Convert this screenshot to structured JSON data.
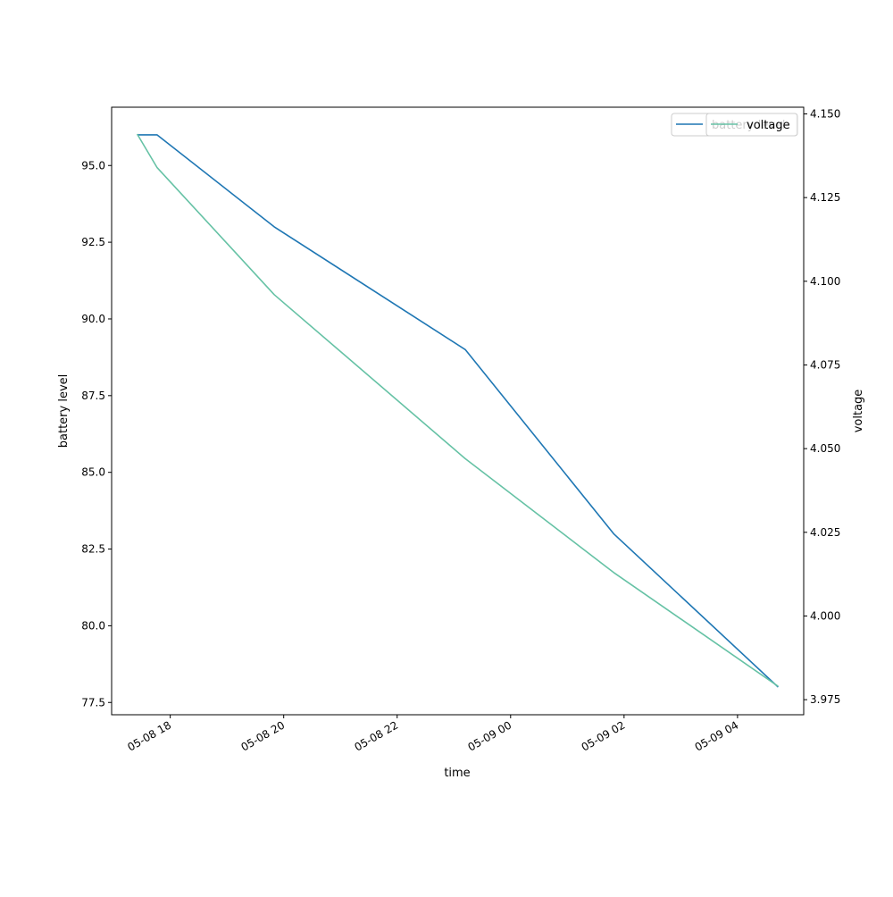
{
  "chart_data": {
    "type": "line",
    "title": "",
    "xlabel": "time",
    "ylabel_left": "battery level",
    "ylabel_right": "voltage",
    "xlim": [
      "2024-05-08T16:58",
      "2024-05-09T05:10"
    ],
    "ylim_left": [
      77.1,
      96.9
    ],
    "ylim_right": [
      3.9705,
      4.152
    ],
    "x_tick_labels": [
      "05-08 18",
      "05-08 20",
      "05-08 22",
      "05-09 00",
      "05-09 02",
      "05-09 04"
    ],
    "x_ticks": [
      "2024-05-08T18:00",
      "2024-05-08T20:00",
      "2024-05-08T22:00",
      "2024-05-09T00:00",
      "2024-05-09T02:00",
      "2024-05-09T04:00"
    ],
    "y_left_ticks": [
      77.5,
      80.0,
      82.5,
      85.0,
      87.5,
      90.0,
      92.5,
      95.0
    ],
    "y_left_tick_labels": [
      "77.5",
      "80.0",
      "82.5",
      "85.0",
      "87.5",
      "90.0",
      "92.5",
      "95.0"
    ],
    "y_right_ticks": [
      3.975,
      4.0,
      4.025,
      4.05,
      4.075,
      4.1,
      4.125,
      4.15
    ],
    "y_right_tick_labels": [
      "3.975",
      "4.000",
      "4.025",
      "4.050",
      "4.075",
      "4.100",
      "4.125",
      "4.150"
    ],
    "grid": false,
    "legend_position": "top-right",
    "series": [
      {
        "name": "battery level",
        "axis": "left",
        "color": "#1f77b4",
        "x": [
          "2024-05-08T17:25",
          "2024-05-08T17:46",
          "2024-05-08T19:50",
          "2024-05-08T23:12",
          "2024-05-09T01:49",
          "2024-05-09T04:43"
        ],
        "values": [
          96,
          96,
          93,
          89,
          83,
          78
        ]
      },
      {
        "name": "voltage",
        "axis": "right",
        "color": "#66c2a5",
        "x": [
          "2024-05-08T17:25",
          "2024-05-08T17:46",
          "2024-05-08T19:50",
          "2024-05-08T23:12",
          "2024-05-09T01:49",
          "2024-05-09T04:43"
        ],
        "values": [
          4.144,
          4.134,
          4.096,
          4.047,
          4.013,
          3.979
        ]
      }
    ]
  }
}
